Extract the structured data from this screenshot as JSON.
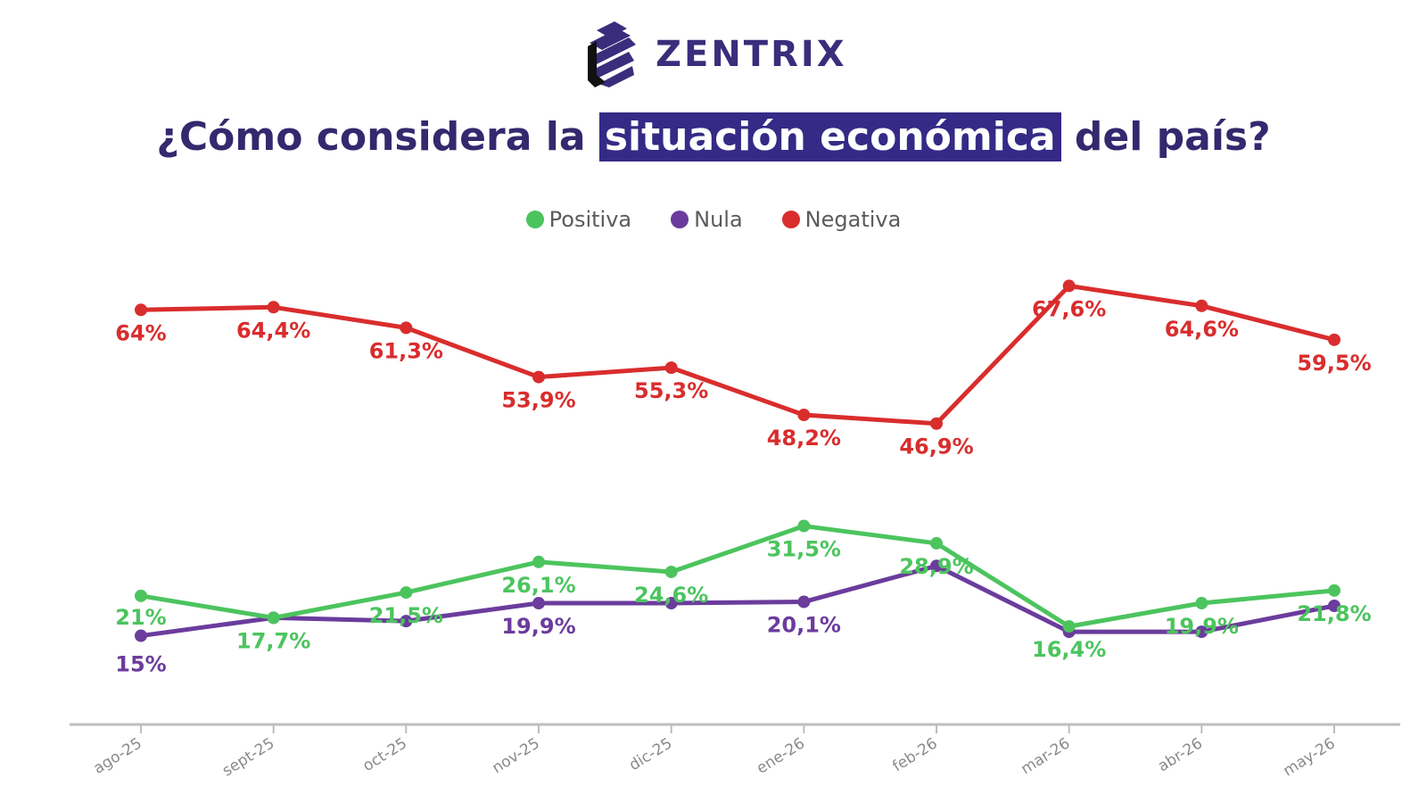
{
  "brand": {
    "name": "ZENTRIX",
    "logo_icon": "zentrix-stripes-logo",
    "color": "#3a2d7c"
  },
  "title": {
    "before": "¿Cómo considera la ",
    "highlight": "situación económica",
    "after": " del país?",
    "highlight_color": "#352a86"
  },
  "chart_data": {
    "type": "line",
    "categories": [
      "ago-25",
      "sept-25",
      "oct-25",
      "nov-25",
      "dic-25",
      "ene-26",
      "feb-26",
      "mar-26",
      "abr-26",
      "may-26"
    ],
    "ylim": [
      0,
      75
    ],
    "grid": false,
    "legend_position": "top-center",
    "series": [
      {
        "name": "Positiva",
        "color": "#4cc45e",
        "values": [
          21,
          17.7,
          21.5,
          26.1,
          24.6,
          31.5,
          28.9,
          16.4,
          19.9,
          21.8
        ],
        "labels": [
          "21%",
          "17,7%",
          "21,5%",
          "26,1%",
          "24,6%",
          "31,5%",
          "28,9%",
          "16,4%",
          "19,9%",
          "21,8%"
        ]
      },
      {
        "name": "Nula",
        "color": "#6b3c9c",
        "values": [
          15,
          17.7,
          17.2,
          19.9,
          19.9,
          20.1,
          25.5,
          15.6,
          15.6,
          19.5
        ],
        "labels": [
          "15%",
          "",
          "",
          "19,9%",
          "",
          "20,1%",
          "",
          "",
          "",
          ""
        ]
      },
      {
        "name": "Negativa",
        "color": "#d92d2d",
        "values": [
          64,
          64.4,
          61.3,
          53.9,
          55.3,
          48.2,
          46.9,
          67.6,
          64.6,
          59.5
        ],
        "labels": [
          "64%",
          "64,4%",
          "61,3%",
          "53,9%",
          "55,3%",
          "48,2%",
          "46,9%",
          "67,6%",
          "64,6%",
          "59,5%"
        ]
      }
    ]
  }
}
